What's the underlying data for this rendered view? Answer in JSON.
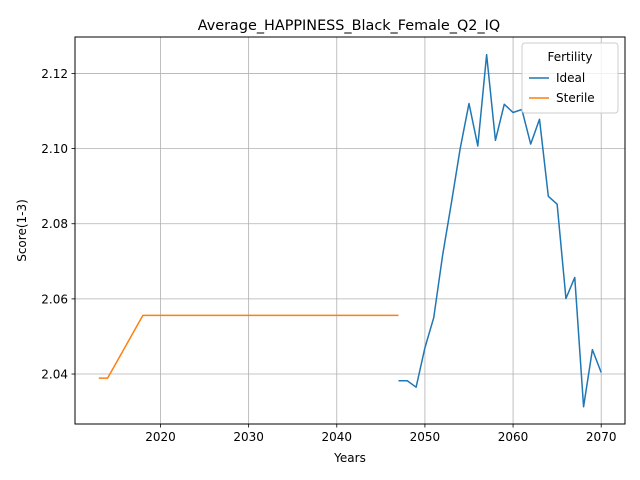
{
  "chart_data": {
    "type": "line",
    "title": "Average_HAPPINESS_Black_Female_Q2_IQ",
    "xlabel": "Years",
    "ylabel": "Score(1-3)",
    "xlim": [
      2010.3,
      2072.7
    ],
    "ylim": [
      2.0267,
      2.1297
    ],
    "xticks": [
      2020,
      2030,
      2040,
      2050,
      2060,
      2070
    ],
    "xtick_labels": [
      "2020",
      "2030",
      "2040",
      "2050",
      "2060",
      "2070"
    ],
    "yticks": [
      2.04,
      2.06,
      2.08,
      2.1,
      2.12
    ],
    "ytick_labels": [
      "2.04",
      "2.06",
      "2.08",
      "2.10",
      "2.12"
    ],
    "grid": true,
    "legend": {
      "title": "Fertility",
      "position": "top-right"
    },
    "series": [
      {
        "name": "Ideal",
        "color": "#1f77b4",
        "x": [
          2047,
          2048,
          2049,
          2050,
          2051,
          2052,
          2053,
          2054,
          2055,
          2056,
          2057,
          2058,
          2059,
          2060,
          2061,
          2062,
          2063,
          2064,
          2065,
          2066,
          2067,
          2068,
          2069,
          2070
        ],
        "y": [
          2.0382,
          2.0382,
          2.0365,
          2.047,
          2.055,
          2.0715,
          2.0855,
          2.1,
          2.112,
          2.1007,
          2.125,
          2.1022,
          2.1118,
          2.1096,
          2.1104,
          2.1012,
          2.1078,
          2.0873,
          2.0852,
          2.0601,
          2.0657,
          2.0313,
          2.0465,
          2.0404
        ]
      },
      {
        "name": "Sterile",
        "color": "#ff7f0e",
        "x": [
          2013,
          2014,
          2018,
          2047
        ],
        "y": [
          2.0389,
          2.0389,
          2.0556,
          2.0556
        ]
      }
    ]
  }
}
